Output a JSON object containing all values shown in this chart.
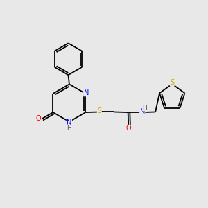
{
  "background_color": "#e8e8e8",
  "bond_color": "#000000",
  "atom_colors": {
    "N": "#0000ff",
    "O": "#ff0000",
    "S": "#ccaa00",
    "C": "#000000",
    "H": "#555555"
  },
  "font_size": 7.0,
  "figsize": [
    3.0,
    3.0
  ],
  "dpi": 100,
  "lw": 1.3
}
